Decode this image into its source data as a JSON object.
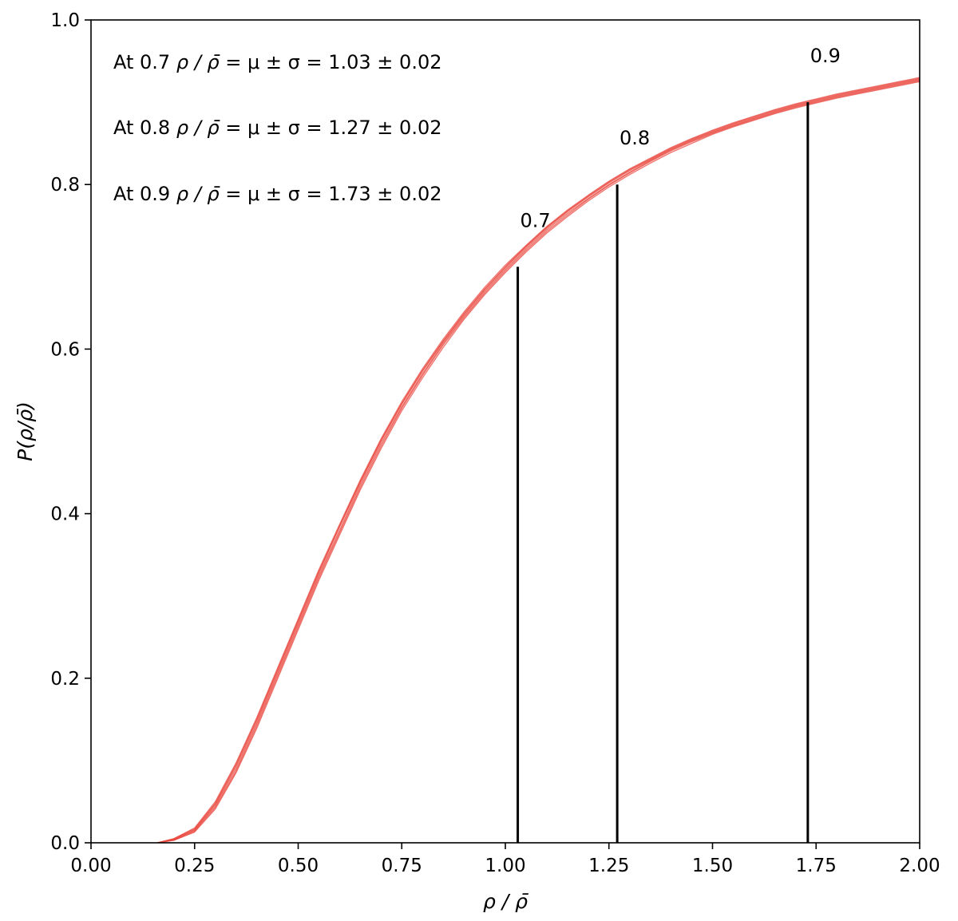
{
  "chart_data": {
    "type": "line",
    "xlabel": "ρ / ρ̄",
    "ylabel": "P(ρ/ρ̄)",
    "xlim": [
      0.0,
      2.0
    ],
    "ylim": [
      0.0,
      1.0
    ],
    "x_ticks": [
      "0.00",
      "0.25",
      "0.50",
      "0.75",
      "1.00",
      "1.25",
      "1.50",
      "1.75",
      "2.00"
    ],
    "y_ticks": [
      "0.0",
      "0.2",
      "0.4",
      "0.6",
      "0.8",
      "1.0"
    ],
    "grid": false,
    "line_color": "#e8433a",
    "marker_color": "#000000",
    "x": [
      0.16,
      0.2,
      0.25,
      0.3,
      0.35,
      0.4,
      0.45,
      0.5,
      0.55,
      0.6,
      0.65,
      0.7,
      0.75,
      0.8,
      0.85,
      0.9,
      0.95,
      1.0,
      1.05,
      1.1,
      1.15,
      1.2,
      1.25,
      1.3,
      1.35,
      1.4,
      1.45,
      1.5,
      1.55,
      1.6,
      1.65,
      1.7,
      1.75,
      1.8,
      1.85,
      1.9,
      1.95,
      2.0
    ],
    "series": [
      {
        "values": [
          0.0,
          0.004,
          0.015,
          0.045,
          0.09,
          0.145,
          0.205,
          0.265,
          0.325,
          0.38,
          0.435,
          0.485,
          0.53,
          0.57,
          0.607,
          0.64,
          0.67,
          0.697,
          0.722,
          0.745,
          0.765,
          0.783,
          0.8,
          0.815,
          0.829,
          0.842,
          0.853,
          0.863,
          0.872,
          0.88,
          0.888,
          0.895,
          0.901,
          0.907,
          0.912,
          0.917,
          0.922,
          0.927
        ]
      },
      {
        "values": [
          0.0,
          0.005,
          0.018,
          0.05,
          0.097,
          0.152,
          0.212,
          0.272,
          0.332,
          0.387,
          0.441,
          0.491,
          0.536,
          0.576,
          0.612,
          0.645,
          0.675,
          0.702,
          0.726,
          0.749,
          0.769,
          0.787,
          0.804,
          0.819,
          0.832,
          0.845,
          0.856,
          0.866,
          0.875,
          0.883,
          0.891,
          0.898,
          0.904,
          0.91,
          0.915,
          0.92,
          0.925,
          0.93
        ]
      },
      {
        "values": [
          0.0,
          0.003,
          0.013,
          0.041,
          0.085,
          0.139,
          0.199,
          0.259,
          0.319,
          0.374,
          0.429,
          0.479,
          0.525,
          0.565,
          0.602,
          0.636,
          0.666,
          0.693,
          0.718,
          0.741,
          0.761,
          0.78,
          0.797,
          0.812,
          0.826,
          0.839,
          0.85,
          0.861,
          0.87,
          0.878,
          0.886,
          0.893,
          0.899,
          0.905,
          0.91,
          0.915,
          0.92,
          0.925
        ]
      },
      {
        "values": [
          0.0,
          0.004,
          0.016,
          0.047,
          0.093,
          0.148,
          0.208,
          0.268,
          0.328,
          0.384,
          0.438,
          0.488,
          0.533,
          0.573,
          0.609,
          0.642,
          0.672,
          0.699,
          0.724,
          0.747,
          0.767,
          0.785,
          0.802,
          0.817,
          0.83,
          0.843,
          0.854,
          0.864,
          0.873,
          0.881,
          0.889,
          0.896,
          0.902,
          0.908,
          0.913,
          0.918,
          0.923,
          0.928
        ]
      },
      {
        "values": [
          0.0,
          0.003,
          0.014,
          0.043,
          0.087,
          0.142,
          0.202,
          0.262,
          0.322,
          0.377,
          0.432,
          0.482,
          0.528,
          0.568,
          0.605,
          0.638,
          0.668,
          0.695,
          0.72,
          0.743,
          0.763,
          0.782,
          0.799,
          0.814,
          0.828,
          0.841,
          0.852,
          0.862,
          0.871,
          0.879,
          0.887,
          0.894,
          0.9,
          0.906,
          0.911,
          0.916,
          0.921,
          0.926
        ]
      },
      {
        "values": [
          0.0,
          0.005,
          0.017,
          0.048,
          0.095,
          0.15,
          0.21,
          0.27,
          0.33,
          0.385,
          0.439,
          0.489,
          0.534,
          0.574,
          0.61,
          0.643,
          0.673,
          0.7,
          0.725,
          0.748,
          0.768,
          0.786,
          0.803,
          0.818,
          0.831,
          0.844,
          0.855,
          0.865,
          0.874,
          0.882,
          0.89,
          0.897,
          0.903,
          0.909,
          0.914,
          0.919,
          0.924,
          0.929
        ]
      }
    ],
    "vertical_markers": [
      {
        "x": 1.03,
        "y": 0.7,
        "label": "0.7"
      },
      {
        "x": 1.27,
        "y": 0.8,
        "label": "0.8"
      },
      {
        "x": 1.73,
        "y": 0.9,
        "label": "0.9"
      }
    ],
    "annotations": [
      {
        "prefix": "At 0.7 ",
        "suffix": " = μ ± σ = 1.03 ± 0.02"
      },
      {
        "prefix": "At 0.8 ",
        "suffix": " = μ ± σ = 1.27 ± 0.02"
      },
      {
        "prefix": "At 0.9 ",
        "suffix": " = μ ± σ = 1.73 ± 0.02"
      }
    ]
  }
}
